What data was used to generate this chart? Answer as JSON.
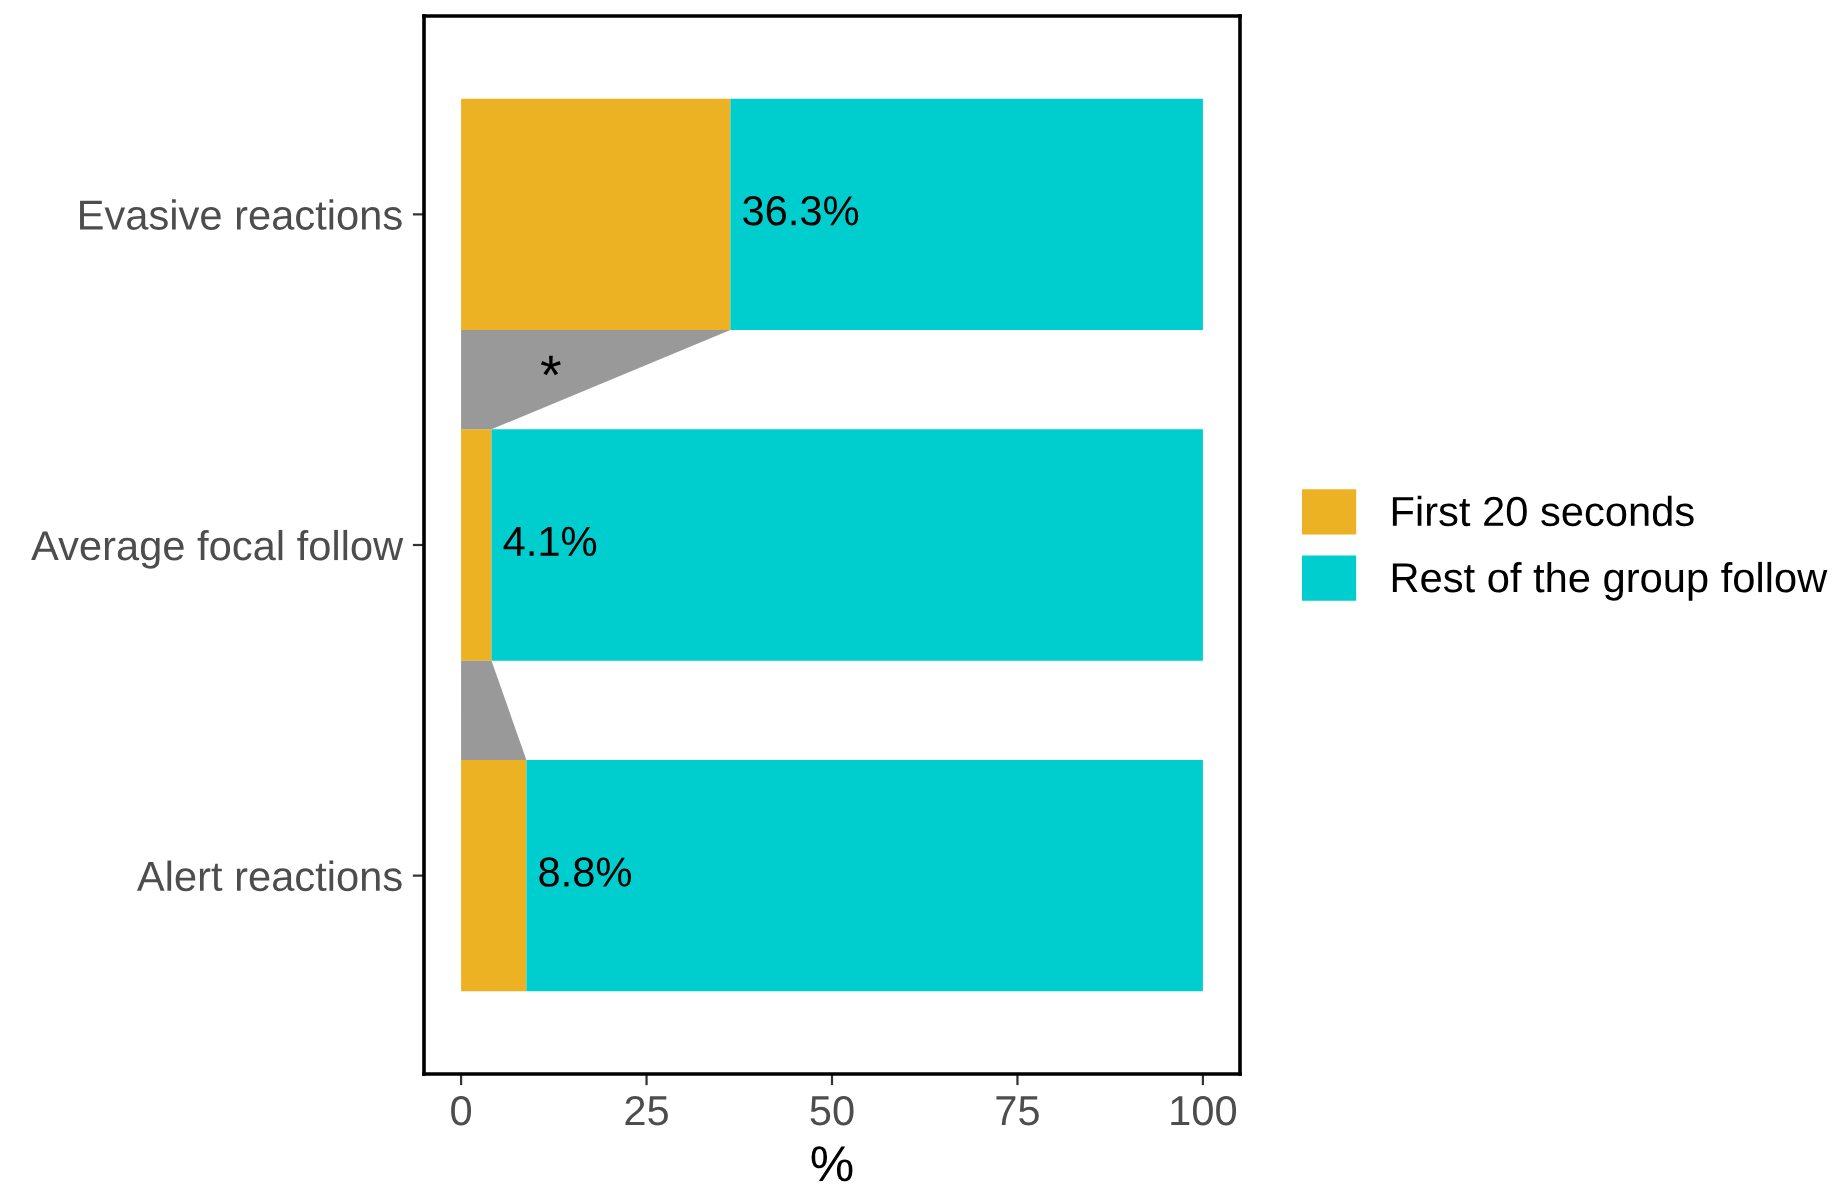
{
  "chart_data": {
    "type": "bar",
    "orientation": "horizontal",
    "stacked": true,
    "categories": [
      "Evasive reactions",
      "Average focal follow",
      "Alert reactions"
    ],
    "series": [
      {
        "name": "First 20 seconds",
        "color": "#edb223",
        "values": [
          36.3,
          4.1,
          8.8
        ],
        "value_labels": [
          "36.3%",
          "4.1%",
          "8.8%"
        ]
      },
      {
        "name": "Rest of the group follow",
        "color": "#00cdcd",
        "values": [
          63.7,
          95.9,
          91.2
        ]
      }
    ],
    "xlabel": "%",
    "xlim": [
      -5,
      105
    ],
    "xticks": [
      0,
      25,
      50,
      75,
      100
    ],
    "annotations": [
      "*"
    ],
    "legend": "right",
    "grid": false
  }
}
